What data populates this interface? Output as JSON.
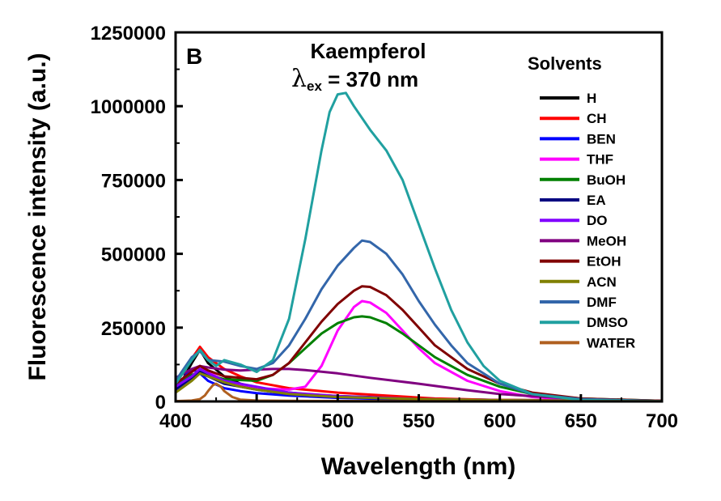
{
  "chart_data": {
    "type": "line",
    "panel_label": "B",
    "title_line1": "Kaempferol",
    "title_lambda": "λ",
    "title_sub": "ex",
    "title_rest": " = 370 nm",
    "xlabel": "Wavelength (nm)",
    "ylabel": "Fluorescence intensity (a.u.)",
    "xlim": [
      400,
      700
    ],
    "ylim": [
      0,
      1250000
    ],
    "xticks": [
      400,
      450,
      500,
      550,
      600,
      650,
      700
    ],
    "yticks": [
      0,
      250000,
      500000,
      750000,
      1000000,
      1250000
    ],
    "xtick_labels": [
      "400",
      "450",
      "500",
      "550",
      "600",
      "650",
      "700"
    ],
    "ytick_labels": [
      "0",
      "250000",
      "500000",
      "750000",
      "1000000",
      "1250000"
    ],
    "grid": false,
    "legend_title": "Solvents",
    "legend_position": "right",
    "series": [
      {
        "name": "H",
        "color": "#000000",
        "x": [
          400,
          405,
          410,
          415,
          420,
          430,
          440,
          450,
          460,
          480,
          500,
          550,
          600,
          700
        ],
        "y": [
          50000,
          80000,
          130000,
          175000,
          130000,
          85000,
          60000,
          45000,
          35000,
          25000,
          18000,
          10000,
          5000,
          2000
        ]
      },
      {
        "name": "CH",
        "color": "#ff0000",
        "x": [
          400,
          405,
          410,
          415,
          420,
          430,
          440,
          450,
          470,
          500,
          530,
          560,
          600,
          700
        ],
        "y": [
          60000,
          100000,
          145000,
          185000,
          150000,
          110000,
          85000,
          65000,
          45000,
          30000,
          20000,
          10000,
          5000,
          2000
        ]
      },
      {
        "name": "BEN",
        "color": "#0000ff",
        "x": [
          400,
          405,
          410,
          415,
          420,
          430,
          440,
          450,
          470,
          500,
          550,
          600,
          700
        ],
        "y": [
          40000,
          80000,
          110000,
          95000,
          70000,
          45000,
          35000,
          28000,
          20000,
          12000,
          6000,
          3000,
          1000
        ]
      },
      {
        "name": "THF",
        "color": "#ff00ff",
        "x": [
          400,
          410,
          415,
          420,
          430,
          450,
          470,
          480,
          490,
          500,
          510,
          515,
          520,
          530,
          540,
          550,
          560,
          580,
          600,
          620,
          650,
          700
        ],
        "y": [
          60000,
          100000,
          120000,
          100000,
          70000,
          45000,
          40000,
          50000,
          120000,
          240000,
          320000,
          340000,
          335000,
          300000,
          240000,
          180000,
          130000,
          70000,
          35000,
          15000,
          5000,
          1000
        ]
      },
      {
        "name": "BuOH",
        "color": "#008000",
        "x": [
          400,
          410,
          415,
          420,
          430,
          450,
          460,
          470,
          480,
          490,
          500,
          510,
          515,
          520,
          530,
          540,
          550,
          560,
          580,
          600,
          620,
          650,
          700
        ],
        "y": [
          50000,
          90000,
          100000,
          90000,
          75000,
          70000,
          90000,
          130000,
          180000,
          230000,
          265000,
          285000,
          288000,
          285000,
          265000,
          230000,
          190000,
          150000,
          90000,
          50000,
          25000,
          10000,
          2000
        ]
      },
      {
        "name": "EA",
        "color": "#000080",
        "x": [
          400,
          410,
          415,
          420,
          430,
          450,
          470,
          500,
          550,
          600,
          700
        ],
        "y": [
          40000,
          80000,
          100000,
          85000,
          60000,
          40000,
          25000,
          15000,
          8000,
          4000,
          1000
        ]
      },
      {
        "name": "DO",
        "color": "#8000ff",
        "x": [
          400,
          410,
          415,
          420,
          430,
          450,
          470,
          500,
          550,
          600,
          700
        ],
        "y": [
          50000,
          85000,
          110000,
          95000,
          70000,
          50000,
          30000,
          18000,
          8000,
          4000,
          1000
        ]
      },
      {
        "name": "MeOH",
        "color": "#800080",
        "x": [
          400,
          410,
          415,
          420,
          430,
          440,
          450,
          460,
          470,
          480,
          500,
          520,
          550,
          580,
          600,
          650,
          700
        ],
        "y": [
          80000,
          110000,
          120000,
          115000,
          108000,
          105000,
          108000,
          110000,
          110000,
          106000,
          95000,
          80000,
          60000,
          38000,
          25000,
          8000,
          2000
        ]
      },
      {
        "name": "EtOH",
        "color": "#800000",
        "x": [
          400,
          410,
          415,
          420,
          430,
          450,
          460,
          470,
          480,
          490,
          500,
          510,
          515,
          520,
          530,
          540,
          550,
          560,
          580,
          600,
          620,
          650,
          700
        ],
        "y": [
          60000,
          100000,
          120000,
          105000,
          85000,
          75000,
          90000,
          130000,
          200000,
          270000,
          330000,
          375000,
          390000,
          388000,
          360000,
          310000,
          250000,
          190000,
          110000,
          60000,
          30000,
          10000,
          2000
        ]
      },
      {
        "name": "ACN",
        "color": "#808000",
        "x": [
          400,
          410,
          415,
          420,
          430,
          440,
          450,
          470,
          500,
          550,
          600,
          700
        ],
        "y": [
          30000,
          70000,
          95000,
          85000,
          65000,
          50000,
          40000,
          25000,
          15000,
          8000,
          4000,
          1000
        ]
      },
      {
        "name": "DMF",
        "color": "#3366aa",
        "x": [
          400,
          405,
          410,
          415,
          420,
          430,
          440,
          450,
          460,
          470,
          480,
          490,
          500,
          510,
          515,
          520,
          530,
          540,
          550,
          560,
          570,
          580,
          600,
          620,
          650,
          700
        ],
        "y": [
          70000,
          110000,
          150000,
          170000,
          140000,
          135000,
          120000,
          110000,
          130000,
          190000,
          280000,
          380000,
          460000,
          520000,
          545000,
          540000,
          500000,
          430000,
          340000,
          260000,
          190000,
          130000,
          60000,
          25000,
          8000,
          1000
        ]
      },
      {
        "name": "DMSO",
        "color": "#20a0a0",
        "x": [
          400,
          405,
          410,
          415,
          420,
          425,
          430,
          440,
          450,
          460,
          470,
          480,
          490,
          495,
          500,
          505,
          510,
          520,
          530,
          540,
          550,
          560,
          570,
          580,
          590,
          600,
          620,
          650,
          700
        ],
        "y": [
          60000,
          100000,
          140000,
          175000,
          140000,
          120000,
          140000,
          125000,
          100000,
          140000,
          280000,
          550000,
          850000,
          980000,
          1040000,
          1045000,
          1000000,
          920000,
          850000,
          750000,
          600000,
          450000,
          310000,
          200000,
          120000,
          70000,
          25000,
          5000,
          1000
        ]
      },
      {
        "name": "WATER",
        "color": "#b06020",
        "x": [
          400,
          410,
          415,
          418,
          420,
          423,
          425,
          428,
          430,
          435,
          440,
          450,
          470,
          500,
          550,
          600,
          700
        ],
        "y": [
          1000,
          3000,
          8000,
          20000,
          35000,
          55000,
          60000,
          50000,
          35000,
          15000,
          6000,
          3000,
          2000,
          1500,
          1000,
          800,
          500
        ]
      }
    ]
  }
}
